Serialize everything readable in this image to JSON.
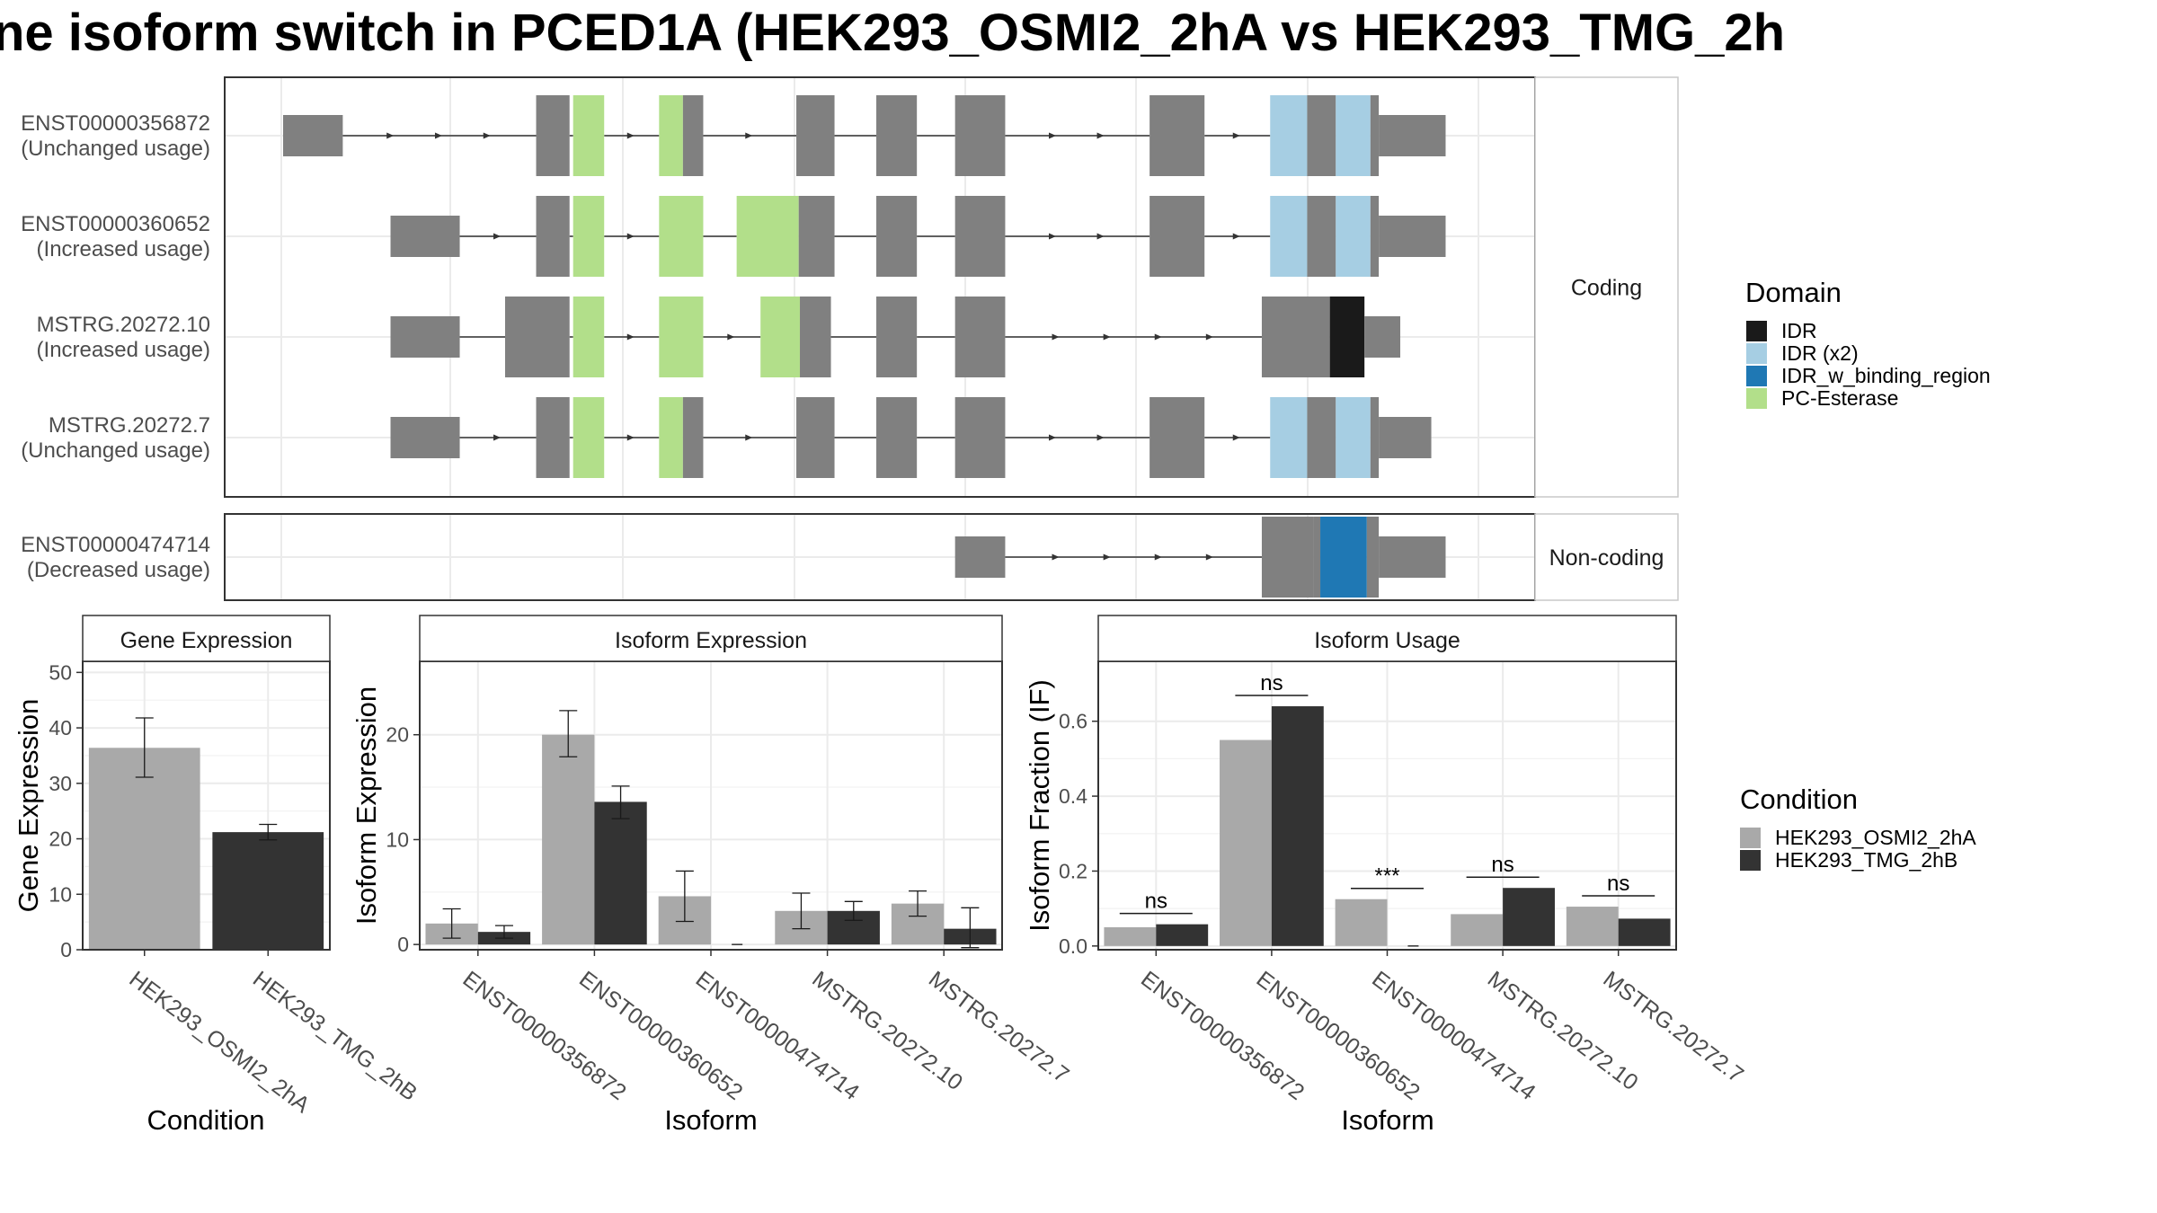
{
  "title": "ne isoform switch in PCED1A (HEK293_OSMI2_2hA vs HEK293_TMG_2h",
  "colors": {
    "exon": "#808080",
    "IDR": "#1a1a1a",
    "IDR (x2)": "#a6cee3",
    "IDR_w_binding_region": "#1f78b4",
    "PC-Esterase": "#b2df8a",
    "cond1": "#a9a9a9",
    "cond2": "#333333"
  },
  "transcript_panels": [
    {
      "strip": "Coding",
      "transcripts": [
        {
          "id": "ENST00000356872",
          "usage": "(Unchanged usage)",
          "exons": [
            [
              0.0,
              0.05
            ],
            [
              0.212,
              0.24
            ],
            [
              0.243,
              0.269
            ],
            [
              0.315,
              0.335
            ],
            [
              0.335,
              0.352
            ],
            [
              0.43,
              0.462
            ],
            [
              0.497,
              0.531
            ],
            [
              0.563,
              0.605
            ],
            [
              0.726,
              0.772
            ],
            [
              0.827,
              0.858
            ],
            [
              0.858,
              0.882
            ],
            [
              0.882,
              0.911
            ],
            [
              0.911,
              0.918
            ],
            [
              0.918,
              0.974
            ]
          ],
          "exon_features": [
            null,
            null,
            "PC-Esterase",
            "PC-Esterase",
            null,
            null,
            null,
            null,
            null,
            "IDR (x2)",
            null,
            "IDR (x2)",
            null,
            null
          ]
        },
        {
          "id": "ENST00000360652",
          "usage": "(Increased usage)",
          "exons": [
            [
              0.09,
              0.148
            ],
            [
              0.212,
              0.24
            ],
            [
              0.243,
              0.269
            ],
            [
              0.315,
              0.352
            ],
            [
              0.38,
              0.432
            ],
            [
              0.432,
              0.462
            ],
            [
              0.497,
              0.531
            ],
            [
              0.563,
              0.605
            ],
            [
              0.726,
              0.772
            ],
            [
              0.827,
              0.858
            ],
            [
              0.858,
              0.882
            ],
            [
              0.882,
              0.911
            ],
            [
              0.911,
              0.918
            ],
            [
              0.918,
              0.974
            ]
          ],
          "exon_features": [
            null,
            null,
            "PC-Esterase",
            "PC-Esterase",
            "PC-Esterase",
            null,
            null,
            null,
            null,
            "IDR (x2)",
            null,
            "IDR (x2)",
            null,
            null
          ]
        },
        {
          "id": "MSTRG.20272.10",
          "usage": "(Increased usage)",
          "exons": [
            [
              0.09,
              0.148
            ],
            [
              0.186,
              0.24
            ],
            [
              0.243,
              0.269
            ],
            [
              0.315,
              0.352
            ],
            [
              0.4,
              0.433
            ],
            [
              0.433,
              0.459
            ],
            [
              0.497,
              0.531
            ],
            [
              0.563,
              0.605
            ],
            [
              0.82,
              0.877
            ],
            [
              0.877,
              0.906
            ],
            [
              0.906,
              0.936
            ]
          ],
          "exon_features": [
            null,
            null,
            "PC-Esterase",
            "PC-Esterase",
            "PC-Esterase",
            null,
            null,
            null,
            null,
            "IDR",
            null
          ]
        },
        {
          "id": "MSTRG.20272.7",
          "usage": "(Unchanged usage)",
          "exons": [
            [
              0.09,
              0.148
            ],
            [
              0.212,
              0.24
            ],
            [
              0.243,
              0.269
            ],
            [
              0.315,
              0.335
            ],
            [
              0.335,
              0.352
            ],
            [
              0.43,
              0.462
            ],
            [
              0.497,
              0.531
            ],
            [
              0.563,
              0.605
            ],
            [
              0.726,
              0.772
            ],
            [
              0.827,
              0.858
            ],
            [
              0.858,
              0.882
            ],
            [
              0.882,
              0.911
            ],
            [
              0.911,
              0.918
            ],
            [
              0.918,
              0.962
            ]
          ],
          "exon_features": [
            null,
            null,
            "PC-Esterase",
            "PC-Esterase",
            null,
            null,
            null,
            null,
            null,
            "IDR (x2)",
            null,
            "IDR (x2)",
            null,
            null
          ]
        }
      ]
    },
    {
      "strip": "Non-coding",
      "transcripts": [
        {
          "id": "ENST00000474714",
          "usage": "(Decreased usage)",
          "exons": [
            [
              0.563,
              0.605
            ],
            [
              0.82,
              0.863
            ],
            [
              0.863,
              0.869
            ],
            [
              0.869,
              0.908
            ],
            [
              0.908,
              0.918
            ],
            [
              0.918,
              0.974
            ]
          ],
          "exon_features": [
            null,
            null,
            null,
            "IDR_w_binding_region",
            null,
            null
          ]
        }
      ]
    }
  ],
  "domain_legend": {
    "title": "Domain",
    "items": [
      "IDR",
      "IDR (x2)",
      "IDR_w_binding_region",
      "PC-Esterase"
    ]
  },
  "condition_legend": {
    "title": "Condition",
    "items": [
      "HEK293_OSMI2_2hA",
      "HEK293_TMG_2hB"
    ]
  },
  "chart_data": [
    {
      "type": "bar",
      "title": "Gene Expression",
      "xlabel": "Condition",
      "ylabel": "Gene Expression",
      "ylim": [
        0,
        52
      ],
      "yticks": [
        0,
        10,
        20,
        30,
        40,
        50
      ],
      "categories": [
        "HEK293_OSMI2_2hA",
        "HEK293_TMG_2hB"
      ],
      "values": [
        36.4,
        21.2
      ],
      "error_low": [
        31.1,
        19.8
      ],
      "error_high": [
        41.8,
        22.6
      ]
    },
    {
      "type": "bar",
      "title": "Isoform Expression",
      "xlabel": "Isoform",
      "ylabel": "Isoform Expression",
      "ylim": [
        -0.5,
        27
      ],
      "yticks": [
        0,
        10,
        20
      ],
      "categories": [
        "ENST00000356872",
        "ENST00000360652",
        "ENST00000474714",
        "MSTRG.20272.10",
        "MSTRG.20272.7"
      ],
      "series": [
        {
          "name": "HEK293_OSMI2_2hA",
          "values": [
            2.0,
            20.0,
            4.6,
            3.2,
            3.9
          ],
          "error_low": [
            0.6,
            17.9,
            2.2,
            1.5,
            2.7
          ],
          "error_high": [
            3.4,
            22.3,
            7.0,
            4.9,
            5.1
          ]
        },
        {
          "name": "HEK293_TMG_2hB",
          "values": [
            1.2,
            13.6,
            0.0,
            3.2,
            1.5
          ],
          "error_low": [
            0.6,
            12.0,
            0.0,
            2.3,
            -0.3
          ],
          "error_high": [
            1.8,
            15.1,
            0.0,
            4.1,
            3.5
          ]
        }
      ]
    },
    {
      "type": "bar",
      "title": "Isoform Usage",
      "xlabel": "Isoform",
      "ylabel": "Isoform Fraction (IF)",
      "ylim": [
        -0.01,
        0.76
      ],
      "yticks": [
        0.0,
        0.2,
        0.4,
        0.6
      ],
      "categories": [
        "ENST00000356872",
        "ENST00000360652",
        "ENST00000474714",
        "MSTRG.20272.10",
        "MSTRG.20272.7"
      ],
      "series": [
        {
          "name": "HEK293_OSMI2_2hA",
          "values": [
            0.05,
            0.55,
            0.125,
            0.085,
            0.105
          ]
        },
        {
          "name": "HEK293_TMG_2hB",
          "values": [
            0.058,
            0.64,
            0.0,
            0.155,
            0.073
          ]
        }
      ],
      "significance": [
        "ns",
        "ns",
        "***",
        "ns",
        "ns"
      ]
    }
  ]
}
